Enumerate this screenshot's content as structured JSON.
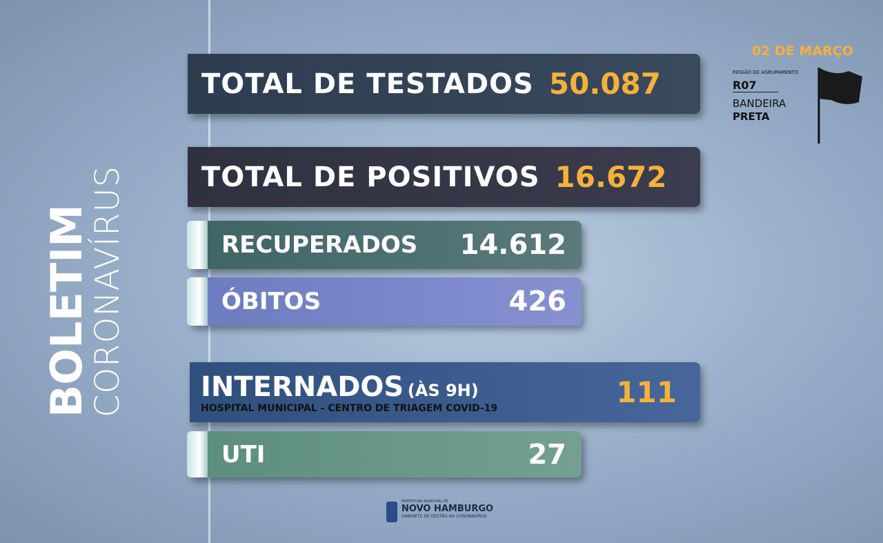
{
  "side": {
    "title": "BOLETIM",
    "subtitle": "CORONAVÍRUS"
  },
  "header": {
    "date": "02 DE MARÇO",
    "region_label": "REGIÃO DE AGRUPAMENTO",
    "region": "R07",
    "flag_label": "BANDEIRA",
    "flag": "PRETA"
  },
  "rows": [
    {
      "label": "TOTAL DE TESTADOS",
      "value": "50.087"
    },
    {
      "label": "TOTAL DE POSITIVOS",
      "value": "16.672"
    },
    {
      "label": "RECUPERADOS",
      "value": "14.612"
    },
    {
      "label": "ÓBITOS",
      "value": "426"
    },
    {
      "label": "INTERNADOS",
      "note": "(ÀS 9H)",
      "detail": "HOSPITAL MUNICIPAL - CENTRO DE TRIAGEM COVID-19",
      "value": "111"
    },
    {
      "label": "UTI",
      "value": "27"
    }
  ],
  "footer": {
    "line1": "PREFEITURA MUNICIPAL DE",
    "line2": "NOVO HAMBURGO",
    "line3": "GABINETE DE GESTÃO AO CORONAVÍRUS"
  }
}
